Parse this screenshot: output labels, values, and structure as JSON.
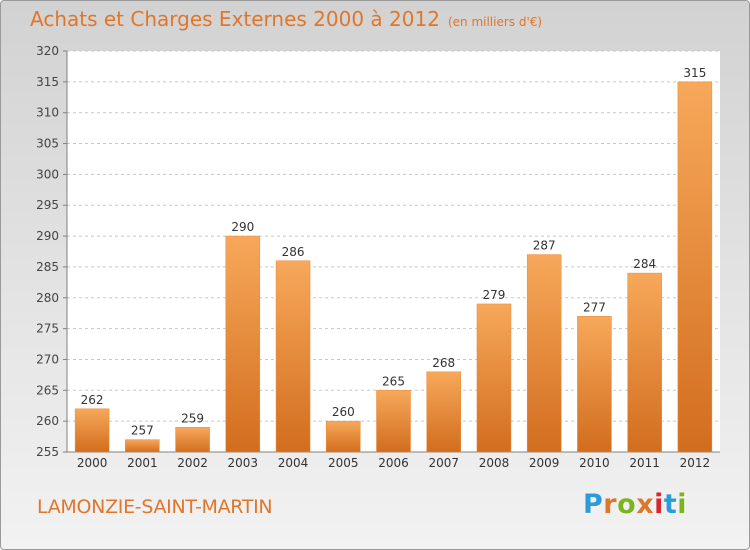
{
  "header": {
    "title": "Achats et Charges Externes 2000 à 2012",
    "unit": "(en milliers d'€)"
  },
  "footer": {
    "city": "LAMONZIE-SAINT-MARTIN",
    "logo": "Proxiti"
  },
  "colors": {
    "accent": "#e0762a",
    "bar_light": "#f7a85a",
    "bar_dark": "#d26d1e",
    "logo_letters": [
      "#2a9dd8",
      "#e0762a",
      "#7ab51d",
      "#e0762a",
      "#d8262e",
      "#2a9dd8",
      "#7ab51d"
    ]
  },
  "chart_data": {
    "type": "bar",
    "categories": [
      "2000",
      "2001",
      "2002",
      "2003",
      "2004",
      "2005",
      "2006",
      "2007",
      "2008",
      "2009",
      "2010",
      "2011",
      "2012"
    ],
    "values": [
      262,
      257,
      259,
      290,
      286,
      260,
      265,
      268,
      279,
      287,
      277,
      284,
      315
    ],
    "ylim": [
      255,
      320
    ],
    "yticks": [
      255,
      260,
      265,
      270,
      275,
      280,
      285,
      290,
      295,
      300,
      305,
      310,
      315,
      320
    ],
    "grid": true,
    "legend": "none"
  }
}
